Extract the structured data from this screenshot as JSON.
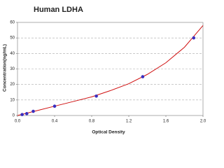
{
  "chart_data": {
    "type": "scatter",
    "title": "Human LDHA",
    "x_label": "Optical Density",
    "y_label": "Concentration(ng/mL)",
    "xlim": [
      0,
      2
    ],
    "ylim": [
      0,
      60
    ],
    "xticks": [
      {
        "value": 0,
        "label": "0.0"
      },
      0.4,
      0.8,
      1.2,
      1.6,
      {
        "value": 2,
        "label": "2.0"
      }
    ],
    "yticks": [
      0,
      10,
      20,
      30,
      40,
      50,
      60
    ],
    "grid": true,
    "series": [
      {
        "mode": "markers",
        "color": "#3a2fc0",
        "x": [
          0.05,
          0.1,
          0.17,
          0.4,
          0.85,
          1.35,
          1.9
        ],
        "values": [
          0.6,
          1.2,
          2.7,
          6,
          12.5,
          25,
          50
        ]
      },
      {
        "mode": "line",
        "color": "#d01010",
        "x": [
          0,
          0.2,
          0.4,
          0.6,
          0.8,
          1.0,
          1.2,
          1.4,
          1.6,
          1.8,
          2.0
        ],
        "values": [
          0,
          3,
          6,
          9,
          12,
          16,
          20.5,
          26.5,
          34,
          44,
          58
        ]
      }
    ]
  }
}
